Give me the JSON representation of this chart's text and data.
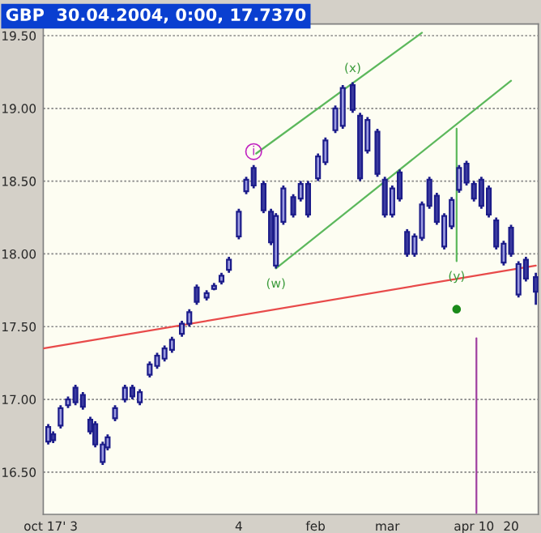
{
  "chart_data": {
    "type": "candlestick",
    "title": "GBP  30.04.2004, 0:00, 17.7370",
    "color": "#1c1c8a",
    "x": [
      "2003-10-16",
      "2003-10-18",
      "2003-10-21",
      "2003-10-24",
      "2003-10-27",
      "2003-10-30",
      "2003-11-02",
      "2003-11-04",
      "2003-11-07",
      "2003-11-09",
      "2003-11-12",
      "2003-11-16",
      "2003-11-19",
      "2003-11-22",
      "2003-11-26",
      "2003-11-29",
      "2003-12-02",
      "2003-12-05",
      "2003-12-09",
      "2003-12-12",
      "2003-12-15",
      "2003-12-19",
      "2003-12-22",
      "2003-12-25",
      "2003-12-28",
      "2004-01-01",
      "2004-01-04",
      "2004-01-07",
      "2004-01-11",
      "2004-01-14",
      "2004-01-16",
      "2004-01-19",
      "2004-01-23",
      "2004-01-26",
      "2004-01-29",
      "2004-02-02",
      "2004-02-05",
      "2004-02-09",
      "2004-02-12",
      "2004-02-16",
      "2004-02-19",
      "2004-02-22",
      "2004-02-26",
      "2004-02-29",
      "2004-03-03",
      "2004-03-06",
      "2004-03-09",
      "2004-03-12",
      "2004-03-15",
      "2004-03-18",
      "2004-03-21",
      "2004-03-24",
      "2004-03-27",
      "2004-03-30",
      "2004-04-02",
      "2004-04-05",
      "2004-04-08",
      "2004-04-11",
      "2004-04-14",
      "2004-04-17",
      "2004-04-20",
      "2004-04-23",
      "2004-04-26",
      "2004-04-30"
    ],
    "ohlc": [
      [
        16.71,
        16.83,
        16.69,
        16.81
      ],
      [
        16.76,
        16.78,
        16.7,
        16.72
      ],
      [
        16.82,
        16.96,
        16.8,
        16.94
      ],
      [
        16.96,
        17.02,
        16.94,
        17.0
      ],
      [
        17.08,
        17.1,
        16.96,
        16.98
      ],
      [
        17.03,
        17.05,
        16.93,
        16.95
      ],
      [
        16.86,
        16.88,
        16.76,
        16.78
      ],
      [
        16.83,
        16.85,
        16.67,
        16.69
      ],
      [
        16.57,
        16.71,
        16.55,
        16.69
      ],
      [
        16.67,
        16.76,
        16.65,
        16.74
      ],
      [
        16.87,
        16.96,
        16.85,
        16.94
      ],
      [
        17.0,
        17.1,
        16.98,
        17.08
      ],
      [
        17.08,
        17.1,
        17.0,
        17.02
      ],
      [
        16.98,
        17.07,
        16.96,
        17.05
      ],
      [
        17.17,
        17.26,
        17.15,
        17.24
      ],
      [
        17.23,
        17.32,
        17.21,
        17.3
      ],
      [
        17.28,
        17.37,
        17.26,
        17.35
      ],
      [
        17.34,
        17.43,
        17.32,
        17.41
      ],
      [
        17.45,
        17.54,
        17.43,
        17.52
      ],
      [
        17.52,
        17.62,
        17.5,
        17.6
      ],
      [
        17.77,
        17.79,
        17.65,
        17.67
      ],
      [
        17.7,
        17.75,
        17.68,
        17.73
      ],
      [
        17.76,
        17.8,
        17.75,
        17.78
      ],
      [
        17.81,
        17.87,
        17.79,
        17.85
      ],
      [
        17.89,
        17.98,
        17.87,
        17.96
      ],
      [
        18.12,
        18.31,
        18.1,
        18.29
      ],
      [
        18.43,
        18.53,
        18.41,
        18.51
      ],
      [
        18.59,
        18.61,
        18.45,
        18.47
      ],
      [
        18.48,
        18.5,
        18.28,
        18.3
      ],
      [
        18.29,
        18.31,
        18.06,
        18.08
      ],
      [
        17.92,
        18.28,
        17.9,
        18.26
      ],
      [
        18.22,
        18.47,
        18.2,
        18.45
      ],
      [
        18.39,
        18.41,
        18.25,
        18.27
      ],
      [
        18.38,
        18.5,
        18.36,
        18.48
      ],
      [
        18.48,
        18.5,
        18.25,
        18.27
      ],
      [
        18.52,
        18.69,
        18.5,
        18.67
      ],
      [
        18.63,
        18.8,
        18.61,
        18.78
      ],
      [
        18.85,
        19.02,
        18.83,
        19.0
      ],
      [
        18.88,
        19.16,
        18.86,
        19.14
      ],
      [
        19.16,
        19.18,
        18.97,
        18.99
      ],
      [
        18.95,
        18.97,
        18.5,
        18.52
      ],
      [
        18.71,
        18.94,
        18.69,
        18.92
      ],
      [
        18.84,
        18.86,
        18.53,
        18.55
      ],
      [
        18.51,
        18.53,
        18.25,
        18.27
      ],
      [
        18.27,
        18.47,
        18.25,
        18.45
      ],
      [
        18.56,
        18.58,
        18.36,
        18.38
      ],
      [
        18.15,
        18.17,
        17.98,
        18.0
      ],
      [
        18.0,
        18.14,
        17.98,
        18.12
      ],
      [
        18.11,
        18.36,
        18.09,
        18.34
      ],
      [
        18.51,
        18.53,
        18.31,
        18.33
      ],
      [
        18.4,
        18.42,
        18.2,
        18.22
      ],
      [
        18.05,
        18.28,
        18.03,
        18.26
      ],
      [
        18.19,
        18.39,
        18.17,
        18.37
      ],
      [
        18.44,
        18.61,
        18.42,
        18.59
      ],
      [
        18.62,
        18.64,
        18.47,
        18.49
      ],
      [
        18.48,
        18.5,
        18.36,
        18.38
      ],
      [
        18.51,
        18.53,
        18.31,
        18.33
      ],
      [
        18.45,
        18.47,
        18.25,
        18.27
      ],
      [
        18.23,
        18.25,
        18.03,
        18.05
      ],
      [
        17.94,
        18.09,
        17.92,
        18.07
      ],
      [
        18.18,
        18.2,
        17.98,
        18.0
      ],
      [
        17.72,
        17.95,
        17.7,
        17.93
      ],
      [
        17.96,
        17.98,
        17.81,
        17.83
      ],
      [
        17.84,
        17.87,
        17.65,
        17.74
      ]
    ],
    "series": [
      {
        "type": "line",
        "color": "#e84a4a",
        "x": [
          "2003-10-14",
          "2004-04-30"
        ],
        "values": [
          17.35,
          17.92
        ]
      },
      {
        "type": "line",
        "color": "#5cb85c",
        "x": [
          "2004-01-08",
          "2004-03-15"
        ],
        "values": [
          18.69,
          19.52
        ]
      },
      {
        "type": "line",
        "color": "#5cb85c",
        "x": [
          "2004-01-16",
          "2004-04-20"
        ],
        "values": [
          17.9,
          19.19
        ]
      },
      {
        "type": "line",
        "color": "#5cb85c",
        "x": [
          "2004-03-29",
          "2004-03-29"
        ],
        "values": [
          18.86,
          17.95
        ]
      },
      {
        "type": "line",
        "color": "#a040a0",
        "x": [
          "2004-04-06",
          "2004-04-06"
        ],
        "values": [
          17.42,
          16.22
        ]
      },
      {
        "type": "scatter",
        "color": "#1a8a1a",
        "marker": "circle",
        "x": [
          "2004-03-29"
        ],
        "values": [
          17.62
        ]
      }
    ],
    "annotations": [
      {
        "text": "i",
        "x": "2004-01-07",
        "y": 18.61
      },
      {
        "text": "(x)",
        "x": "2004-02-16",
        "y": 19.18
      },
      {
        "text": "(w)",
        "x": "2004-01-16",
        "y": 17.9
      },
      {
        "text": "(y)",
        "x": "2004-03-29",
        "y": 17.95
      }
    ],
    "xlim": [
      "2003-10-14",
      "2004-05-01"
    ],
    "xticks": [
      {
        "value": "2003-10-17",
        "label": "oct 17' 3"
      },
      {
        "value": "2004-01-01",
        "label": "4"
      },
      {
        "value": "2004-02-01",
        "label": "feb"
      },
      {
        "value": "2004-03-01",
        "label": "mar"
      },
      {
        "value": "2004-04-01",
        "label": "apr"
      },
      {
        "value": "2004-04-10",
        "label": "10"
      },
      {
        "value": "2004-04-20",
        "label": "20"
      }
    ],
    "ylim": [
      16.21,
      19.58
    ],
    "yticks": [
      {
        "value": 16.5,
        "label": "16.50"
      },
      {
        "value": 17.0,
        "label": "17.00"
      },
      {
        "value": 17.5,
        "label": "17.50"
      },
      {
        "value": 18.0,
        "label": "18.00"
      },
      {
        "value": 18.5,
        "label": "18.50"
      },
      {
        "value": 19.0,
        "label": "19.00"
      },
      {
        "value": 19.5,
        "label": "19.50"
      }
    ],
    "grid": "y",
    "legend": false
  }
}
